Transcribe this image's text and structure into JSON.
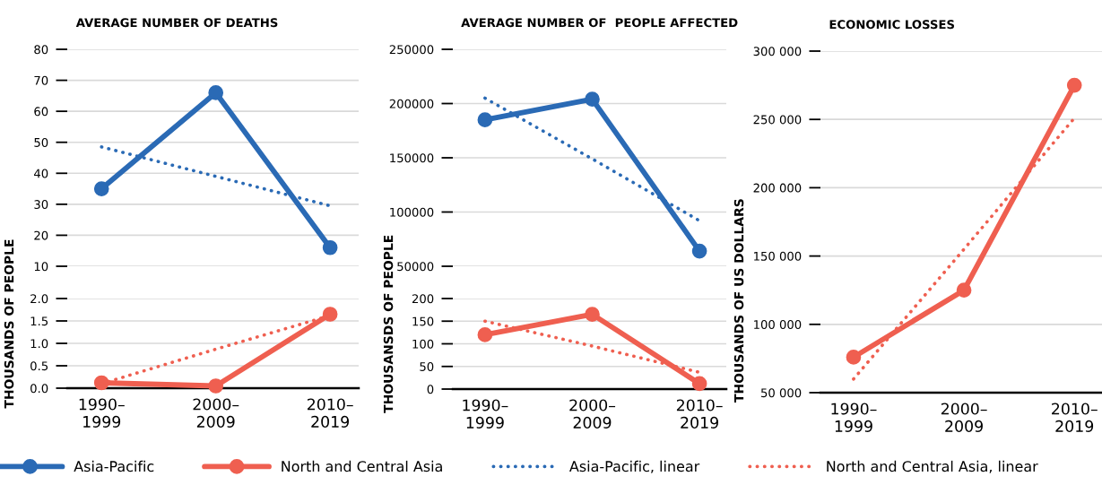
{
  "chart_data": [
    {
      "type": "line",
      "title": "AVERAGE NUMBER OF DEATHS",
      "categories": [
        "1990–\n1999",
        "2000–\n2009",
        "2010–\n2019"
      ],
      "ylim": [
        10,
        80
      ],
      "yticks": [
        10,
        20,
        30,
        40,
        50,
        60,
        70,
        80
      ],
      "grid": "y",
      "marker": "circle",
      "tick_labels": "y",
      "legend": "bottom",
      "series": [
        {
          "name": "Asia-Pacific",
          "color": "#2a6ab5",
          "values": [
            35,
            66,
            16
          ]
        },
        {
          "name": "Asia-Pacific, linear",
          "color": "#2a6ab5",
          "values": [
            48.5,
            39,
            29.5
          ],
          "line_style": "dotted",
          "marker": "none"
        }
      ]
    },
    {
      "type": "line",
      "ylabel": "THOUSANDS OF PEOPLE",
      "categories": [
        "1990–\n1999",
        "2000–\n2009",
        "2010–\n2019"
      ],
      "ylim": [
        0,
        2
      ],
      "yticks": [
        {
          "value": 0,
          "label": "0.0"
        },
        0.5,
        {
          "value": 1,
          "label": "1.0"
        },
        1.5,
        {
          "value": 2,
          "label": "2.0"
        }
      ],
      "grid": "y",
      "marker": "circle",
      "legend": "bottom",
      "series": [
        {
          "name": "North and Central Asia",
          "color": "#ef5f50",
          "values": [
            0.12,
            0.05,
            1.65
          ]
        },
        {
          "name": "North and Central Asia, linear",
          "color": "#ef5f50",
          "values": [
            0.1,
            0.87,
            1.62
          ],
          "line_style": "dotted",
          "marker": "none"
        }
      ]
    },
    {
      "type": "line",
      "title": "AVERAGE NUMBER OF  PEOPLE AFFECTED",
      "categories": [
        "1990–\n1999",
        "2000–\n2009",
        "2010–\n2019"
      ],
      "ylim": [
        50000,
        250000
      ],
      "yticks": [
        50000,
        100000,
        150000,
        200000,
        250000
      ],
      "grid": "y",
      "marker": "circle",
      "tick_labels": "y",
      "legend": "bottom",
      "series": [
        {
          "name": "Asia-Pacific",
          "color": "#2a6ab5",
          "values": [
            185000,
            204000,
            64000
          ]
        },
        {
          "name": "Asia-Pacific, linear",
          "color": "#2a6ab5",
          "values": [
            205000,
            149000,
            92000
          ],
          "line_style": "dotted",
          "marker": "none"
        }
      ]
    },
    {
      "type": "line",
      "ylabel": "THOUSANSDS OF PEOPLE",
      "categories": [
        "1990–\n1999",
        "2000–\n2009",
        "2010–\n2019"
      ],
      "ylim": [
        0,
        200
      ],
      "yticks": [
        0,
        50,
        100,
        150,
        200
      ],
      "grid": "y",
      "marker": "circle",
      "legend": "bottom",
      "series": [
        {
          "name": "North and Central Asia",
          "color": "#ef5f50",
          "values": [
            120,
            165,
            12
          ]
        },
        {
          "name": "North and Central Asia, linear",
          "color": "#ef5f50",
          "values": [
            150,
            95,
            37
          ],
          "line_style": "dotted",
          "marker": "none"
        }
      ]
    },
    {
      "type": "line",
      "title": "ECONOMIC LOSSES",
      "ylabel": "THOUSANDS OF US DOLLARS",
      "categories": [
        "1990–\n1999",
        "2000–\n2009",
        "2010–\n2019"
      ],
      "ylim": [
        50000,
        300000
      ],
      "yticks": [
        {
          "value": 50000,
          "label": "50 000"
        },
        {
          "value": 100000,
          "label": "100 000"
        },
        {
          "value": 150000,
          "label": "150 000"
        },
        {
          "value": 200000,
          "label": "200 000"
        },
        {
          "value": 250000,
          "label": "250 000"
        },
        {
          "value": 300000,
          "label": "300 000"
        }
      ],
      "grid": "y",
      "marker": "circle",
      "legend": "bottom",
      "series": [
        {
          "name": "North and Central Asia",
          "color": "#ef5f50",
          "values": [
            76000,
            125000,
            275000
          ]
        },
        {
          "name": "North and Central Asia, linear",
          "color": "#ef5f50",
          "values": [
            60000,
            155000,
            251000
          ],
          "line_style": "dotted",
          "marker": "none"
        }
      ]
    }
  ]
}
